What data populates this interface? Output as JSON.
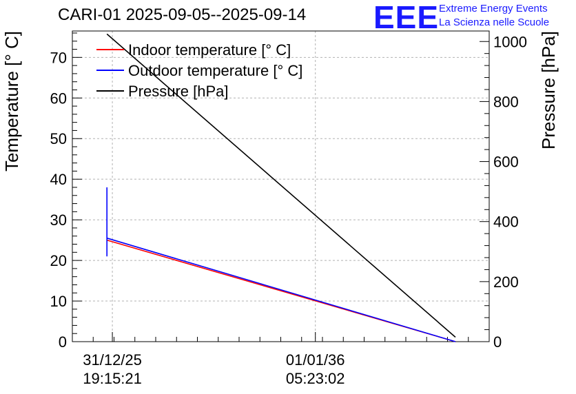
{
  "title": "CARI-01 2025-09-05--2025-09-14",
  "logo": {
    "mark": "EEE",
    "line1": "Extreme Energy Events",
    "line2": "La Scienza nelle Scuole",
    "color": "#1a1aff"
  },
  "chart_data": {
    "type": "line",
    "ylabel_left": "Temperature [° C]",
    "ylabel_right": "Pressure [hPa]",
    "xlim": [
      0,
      100
    ],
    "ylim_left": [
      0,
      76.5
    ],
    "ylim_right": [
      0,
      1035
    ],
    "yticks_left": [
      0,
      10,
      20,
      30,
      40,
      50,
      60,
      70
    ],
    "yticks_right": [
      0,
      200,
      400,
      600,
      800,
      1000
    ],
    "xticks": [
      {
        "x": 9.6,
        "line1": "31/12/25",
        "line2": "19:15:21"
      },
      {
        "x": 58.3,
        "line1": "01/01/36",
        "line2": "05:23:02"
      }
    ],
    "grid": true,
    "legend_position": "top-left",
    "series": [
      {
        "name": "Indoor temperature [° C]",
        "color": "#ff0000",
        "axis": "left",
        "x": [
          8.3,
          91.9
        ],
        "y": [
          25.0,
          0.0
        ]
      },
      {
        "name": "Outdoor temperature [° C]",
        "color": "#0000ff",
        "axis": "left",
        "x": [
          8.3,
          8.3,
          8.3,
          91.9
        ],
        "y": [
          38.0,
          21.0,
          25.5,
          0.0
        ],
        "segments": [
          [
            0,
            1
          ],
          [
            2,
            3
          ]
        ]
      },
      {
        "name": "Pressure [hPa]",
        "color": "#000000",
        "axis": "right",
        "x": [
          8.3,
          91.9
        ],
        "y": [
          1025,
          15
        ]
      }
    ]
  }
}
